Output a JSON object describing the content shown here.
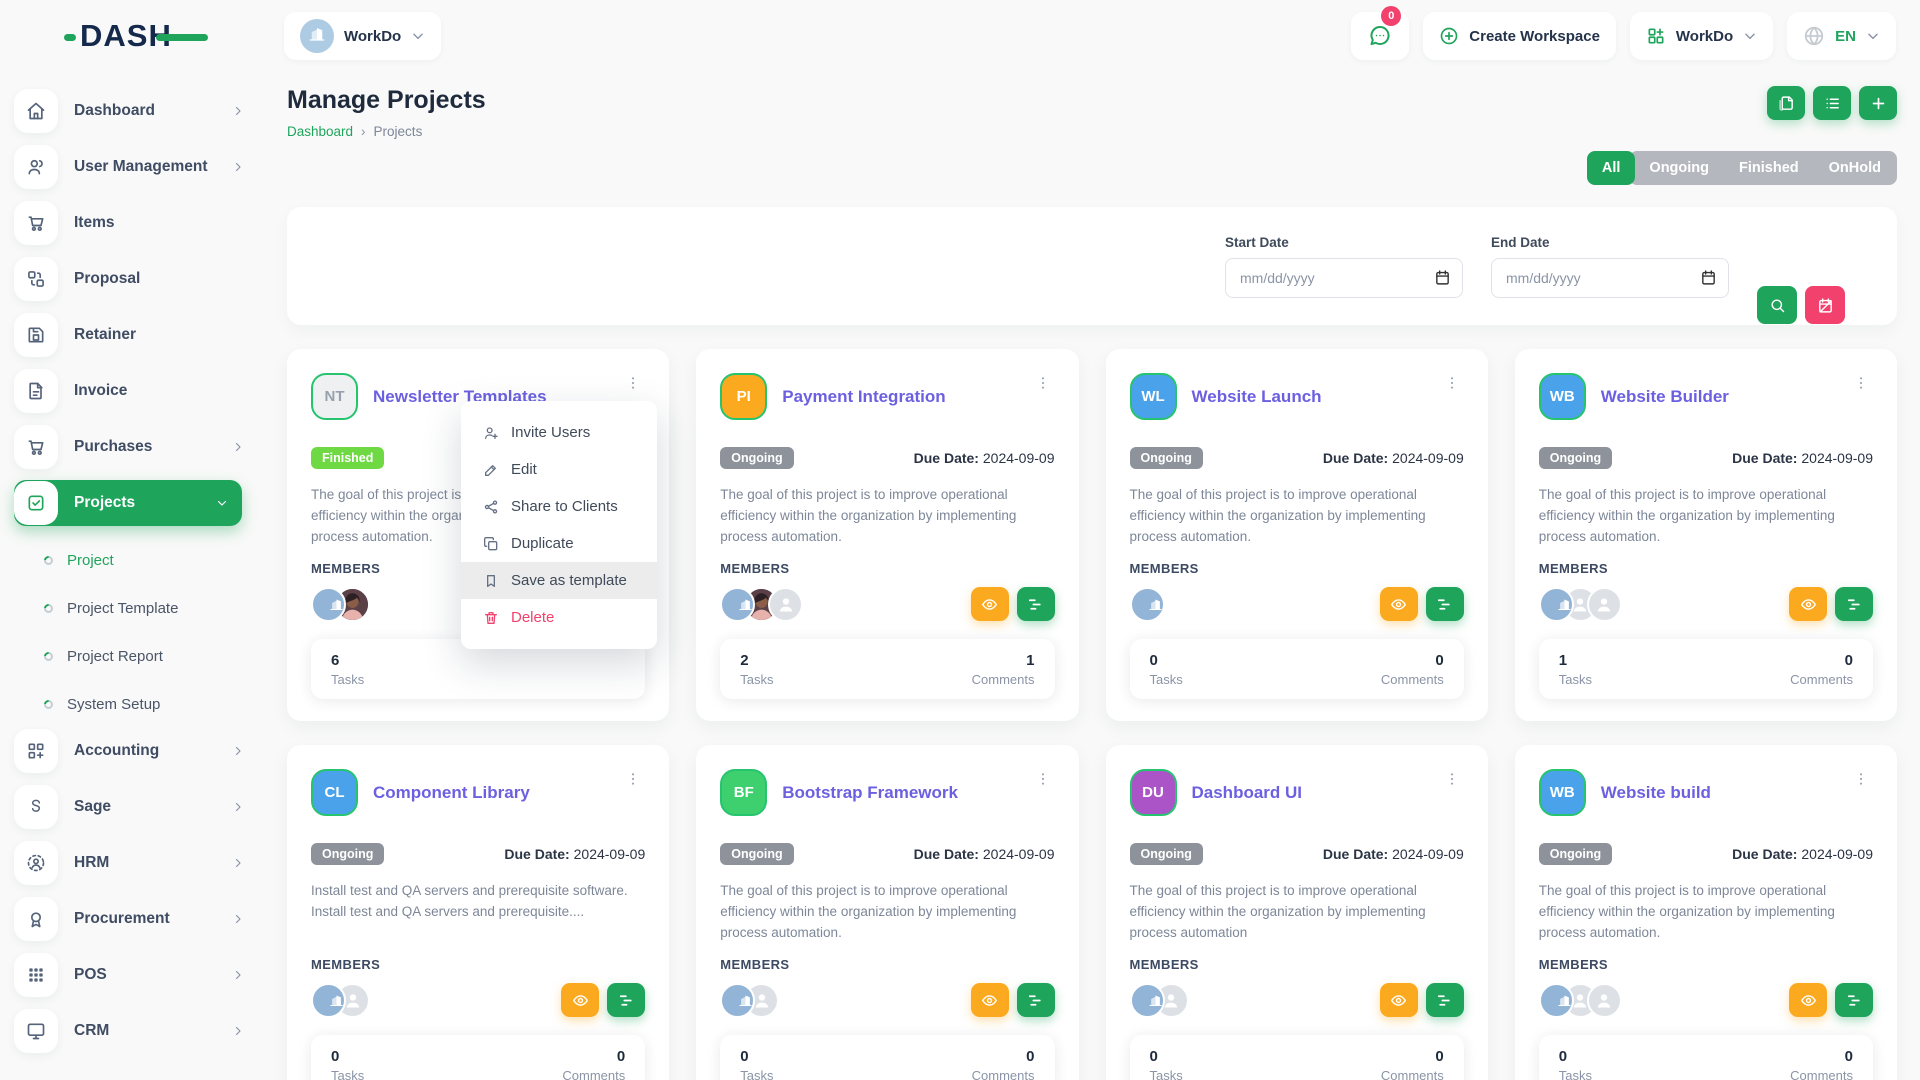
{
  "brand": {
    "name": "DASH"
  },
  "topbar": {
    "workspace_selector": {
      "label": "WorkDo",
      "icon": "building-icon"
    },
    "chat": {
      "badge": "0"
    },
    "create_workspace_label": "Create Workspace",
    "workdo_menu_label": "WorkDo",
    "language": "EN"
  },
  "sidebar": {
    "items": [
      {
        "label": "Dashboard",
        "icon": "home-icon",
        "chevron": true
      },
      {
        "label": "User Management",
        "icon": "users-icon",
        "chevron": true
      },
      {
        "label": "Items",
        "icon": "cart-icon",
        "chevron": false
      },
      {
        "label": "Proposal",
        "icon": "swap-icon",
        "chevron": false
      },
      {
        "label": "Retainer",
        "icon": "save-icon",
        "chevron": false
      },
      {
        "label": "Invoice",
        "icon": "file-icon",
        "chevron": false
      },
      {
        "label": "Purchases",
        "icon": "cart-icon",
        "chevron": true
      },
      {
        "label": "Projects",
        "icon": "check-square-icon",
        "chevron": true,
        "active": true,
        "expanded": true,
        "children": [
          {
            "label": "Project",
            "active": true
          },
          {
            "label": "Project Template",
            "active": false
          },
          {
            "label": "Project Report",
            "active": false
          },
          {
            "label": "System Setup",
            "active": false
          }
        ]
      },
      {
        "label": "Accounting",
        "icon": "grid-plus-icon",
        "chevron": true
      },
      {
        "label": "Sage",
        "icon": "letter-s-icon",
        "chevron": true
      },
      {
        "label": "HRM",
        "icon": "hrm-icon",
        "chevron": true
      },
      {
        "label": "Procurement",
        "icon": "medal-icon",
        "chevron": true
      },
      {
        "label": "POS",
        "icon": "grid-dots-icon",
        "chevron": true
      },
      {
        "label": "CRM",
        "icon": "monitor-icon",
        "chevron": true
      }
    ]
  },
  "page": {
    "title": "Manage Projects",
    "breadcrumb": {
      "parent": "Dashboard",
      "separator": "›",
      "current": "Projects"
    },
    "header_buttons": [
      "template-icon",
      "list-icon",
      "plus-icon"
    ],
    "filters": [
      "All",
      "Ongoing",
      "Finished",
      "OnHold"
    ],
    "active_filter": "All",
    "filter_panel": {
      "start_date_label": "Start Date",
      "end_date_label": "End Date",
      "date_placeholder": "mm/dd/yyyy"
    }
  },
  "labels": {
    "members": "MEMBERS",
    "tasks": "Tasks",
    "comments": "Comments",
    "due_prefix": "Due Date:"
  },
  "status_colors": {
    "Finished": "#6fd944",
    "Ongoing": "#8e939b"
  },
  "context_menu": {
    "items": [
      {
        "label": "Invite Users",
        "icon": "user-plus-icon"
      },
      {
        "label": "Edit",
        "icon": "pencil-icon"
      },
      {
        "label": "Share to Clients",
        "icon": "share-icon"
      },
      {
        "label": "Duplicate",
        "icon": "copy-icon"
      },
      {
        "label": "Save as template",
        "icon": "bookmark-icon",
        "highlighted": true
      },
      {
        "label": "Delete",
        "icon": "trash-icon",
        "danger": true
      }
    ]
  },
  "projects": [
    {
      "initials": "NT",
      "avatar_bg": "#eef0f2",
      "avatar_fg": "#97a1ad",
      "name": "Newsletter Templates",
      "status": "Finished",
      "due_date": null,
      "description": "The goal of this project is to improve operational efficiency within the organization by implementing process automation.",
      "members": [
        "logo",
        "woman"
      ],
      "tasks": "6",
      "comments": null,
      "show_actions": false,
      "menu_open": true
    },
    {
      "initials": "PI",
      "avatar_bg": "#fba91f",
      "avatar_fg": "#ffffff",
      "name": "Payment Integration",
      "status": "Ongoing",
      "due_date": "2024-09-09",
      "description": "The goal of this project is to improve operational efficiency within the organization by implementing process automation.",
      "members": [
        "logo",
        "woman",
        "placeholder"
      ],
      "tasks": "2",
      "comments": "1",
      "show_actions": true,
      "menu_open": false
    },
    {
      "initials": "WL",
      "avatar_bg": "#4aa3ea",
      "avatar_fg": "#ffffff",
      "name": "Website Launch",
      "status": "Ongoing",
      "due_date": "2024-09-09",
      "description": "The goal of this project is to improve operational efficiency within the organization by implementing process automation.",
      "members": [
        "logo"
      ],
      "tasks": "0",
      "comments": "0",
      "show_actions": true,
      "menu_open": false
    },
    {
      "initials": "WB",
      "avatar_bg": "#4aa3ea",
      "avatar_fg": "#ffffff",
      "name": "Website Builder",
      "status": "Ongoing",
      "due_date": "2024-09-09",
      "description": "The goal of this project is to improve operational efficiency within the organization by implementing process automation.",
      "members": [
        "logo",
        "placeholder",
        "placeholder"
      ],
      "tasks": "1",
      "comments": "0",
      "show_actions": true,
      "menu_open": false
    },
    {
      "initials": "CL",
      "avatar_bg": "#4aa3ea",
      "avatar_fg": "#ffffff",
      "name": "Component Library",
      "status": "Ongoing",
      "due_date": "2024-09-09",
      "description": "Install test and QA servers and prerequisite software. Install test and QA servers and prerequisite....",
      "members": [
        "logo",
        "placeholder"
      ],
      "tasks": "0",
      "comments": "0",
      "show_actions": true,
      "menu_open": false
    },
    {
      "initials": "BF",
      "avatar_bg": "#3ecf6f",
      "avatar_fg": "#ffffff",
      "name": "Bootstrap Framework",
      "status": "Ongoing",
      "due_date": "2024-09-09",
      "description": "The goal of this project is to improve operational efficiency within the organization by implementing process automation.",
      "members": [
        "logo",
        "placeholder"
      ],
      "tasks": "0",
      "comments": "0",
      "show_actions": true,
      "menu_open": false
    },
    {
      "initials": "DU",
      "avatar_bg": "#ab54c7",
      "avatar_fg": "#ffffff",
      "name": "Dashboard UI",
      "status": "Ongoing",
      "due_date": "2024-09-09",
      "description": "The goal of this project is to improve operational efficiency within the organization by implementing process automation",
      "members": [
        "logo",
        "placeholder"
      ],
      "tasks": "0",
      "comments": "0",
      "show_actions": true,
      "menu_open": false
    },
    {
      "initials": "WB",
      "avatar_bg": "#4aa3ea",
      "avatar_fg": "#ffffff",
      "name": "Website build",
      "status": "Ongoing",
      "due_date": "2024-09-09",
      "description": "The goal of this project is to improve operational efficiency within the organization by implementing process automation.",
      "members": [
        "logo",
        "placeholder",
        "placeholder"
      ],
      "tasks": "0",
      "comments": "0",
      "show_actions": true,
      "menu_open": false
    }
  ]
}
